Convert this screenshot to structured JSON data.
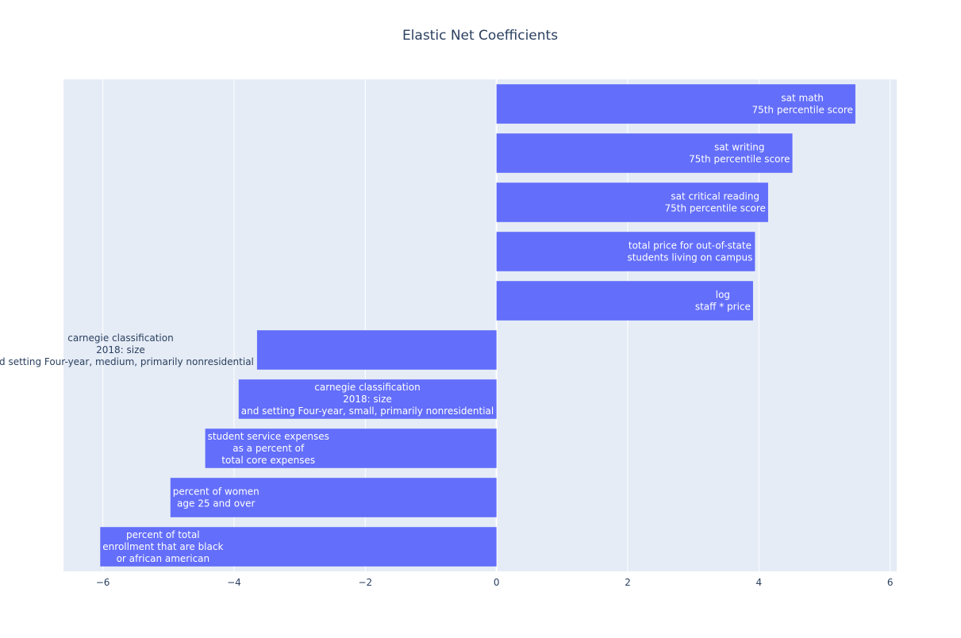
{
  "chart_data": {
    "type": "bar",
    "orientation": "horizontal",
    "title": "Elastic Net Coefficients",
    "xlabel": "",
    "ylabel": "",
    "xlim": [
      -6.6,
      6.1
    ],
    "x_ticks": [
      -6,
      -4,
      -2,
      0,
      2,
      4,
      6
    ],
    "x_tick_labels": [
      "−6",
      "−4",
      "−2",
      "0",
      "2",
      "4",
      "6"
    ],
    "grid": true,
    "bar_color": "#636efa",
    "plot_background": "#e5ecf6",
    "bars": [
      {
        "lines": [
          "sat math",
          "75th percentile score"
        ],
        "value": 5.47,
        "label_position": "inside-end"
      },
      {
        "lines": [
          "sat writing",
          "75th percentile score"
        ],
        "value": 4.51,
        "label_position": "inside-end"
      },
      {
        "lines": [
          "sat critical reading",
          "75th percentile score"
        ],
        "value": 4.14,
        "label_position": "inside-end"
      },
      {
        "lines": [
          "total price for out-of-state",
          "students living on campus"
        ],
        "value": 3.94,
        "label_position": "inside-end"
      },
      {
        "lines": [
          "log",
          "staff * price"
        ],
        "value": 3.91,
        "label_position": "inside-end"
      },
      {
        "lines": [
          "carnegie classification",
          "2018: size",
          "and setting Four-year, medium, primarily nonresidential"
        ],
        "value": -3.65,
        "label_position": "outside"
      },
      {
        "lines": [
          "carnegie classification",
          "2018: size",
          "and setting Four-year, small, primarily nonresidential"
        ],
        "value": -3.93,
        "label_position": "inside-end"
      },
      {
        "lines": [
          "student service expenses",
          "as a percent of",
          "total core expenses"
        ],
        "value": -4.44,
        "label_position": "inside-end"
      },
      {
        "lines": [
          "percent of women",
          "age 25 and over"
        ],
        "value": -4.97,
        "label_position": "inside-end"
      },
      {
        "lines": [
          "percent of total",
          "enrollment that are black",
          "or african american"
        ],
        "value": -6.04,
        "label_position": "inside-end"
      }
    ]
  }
}
